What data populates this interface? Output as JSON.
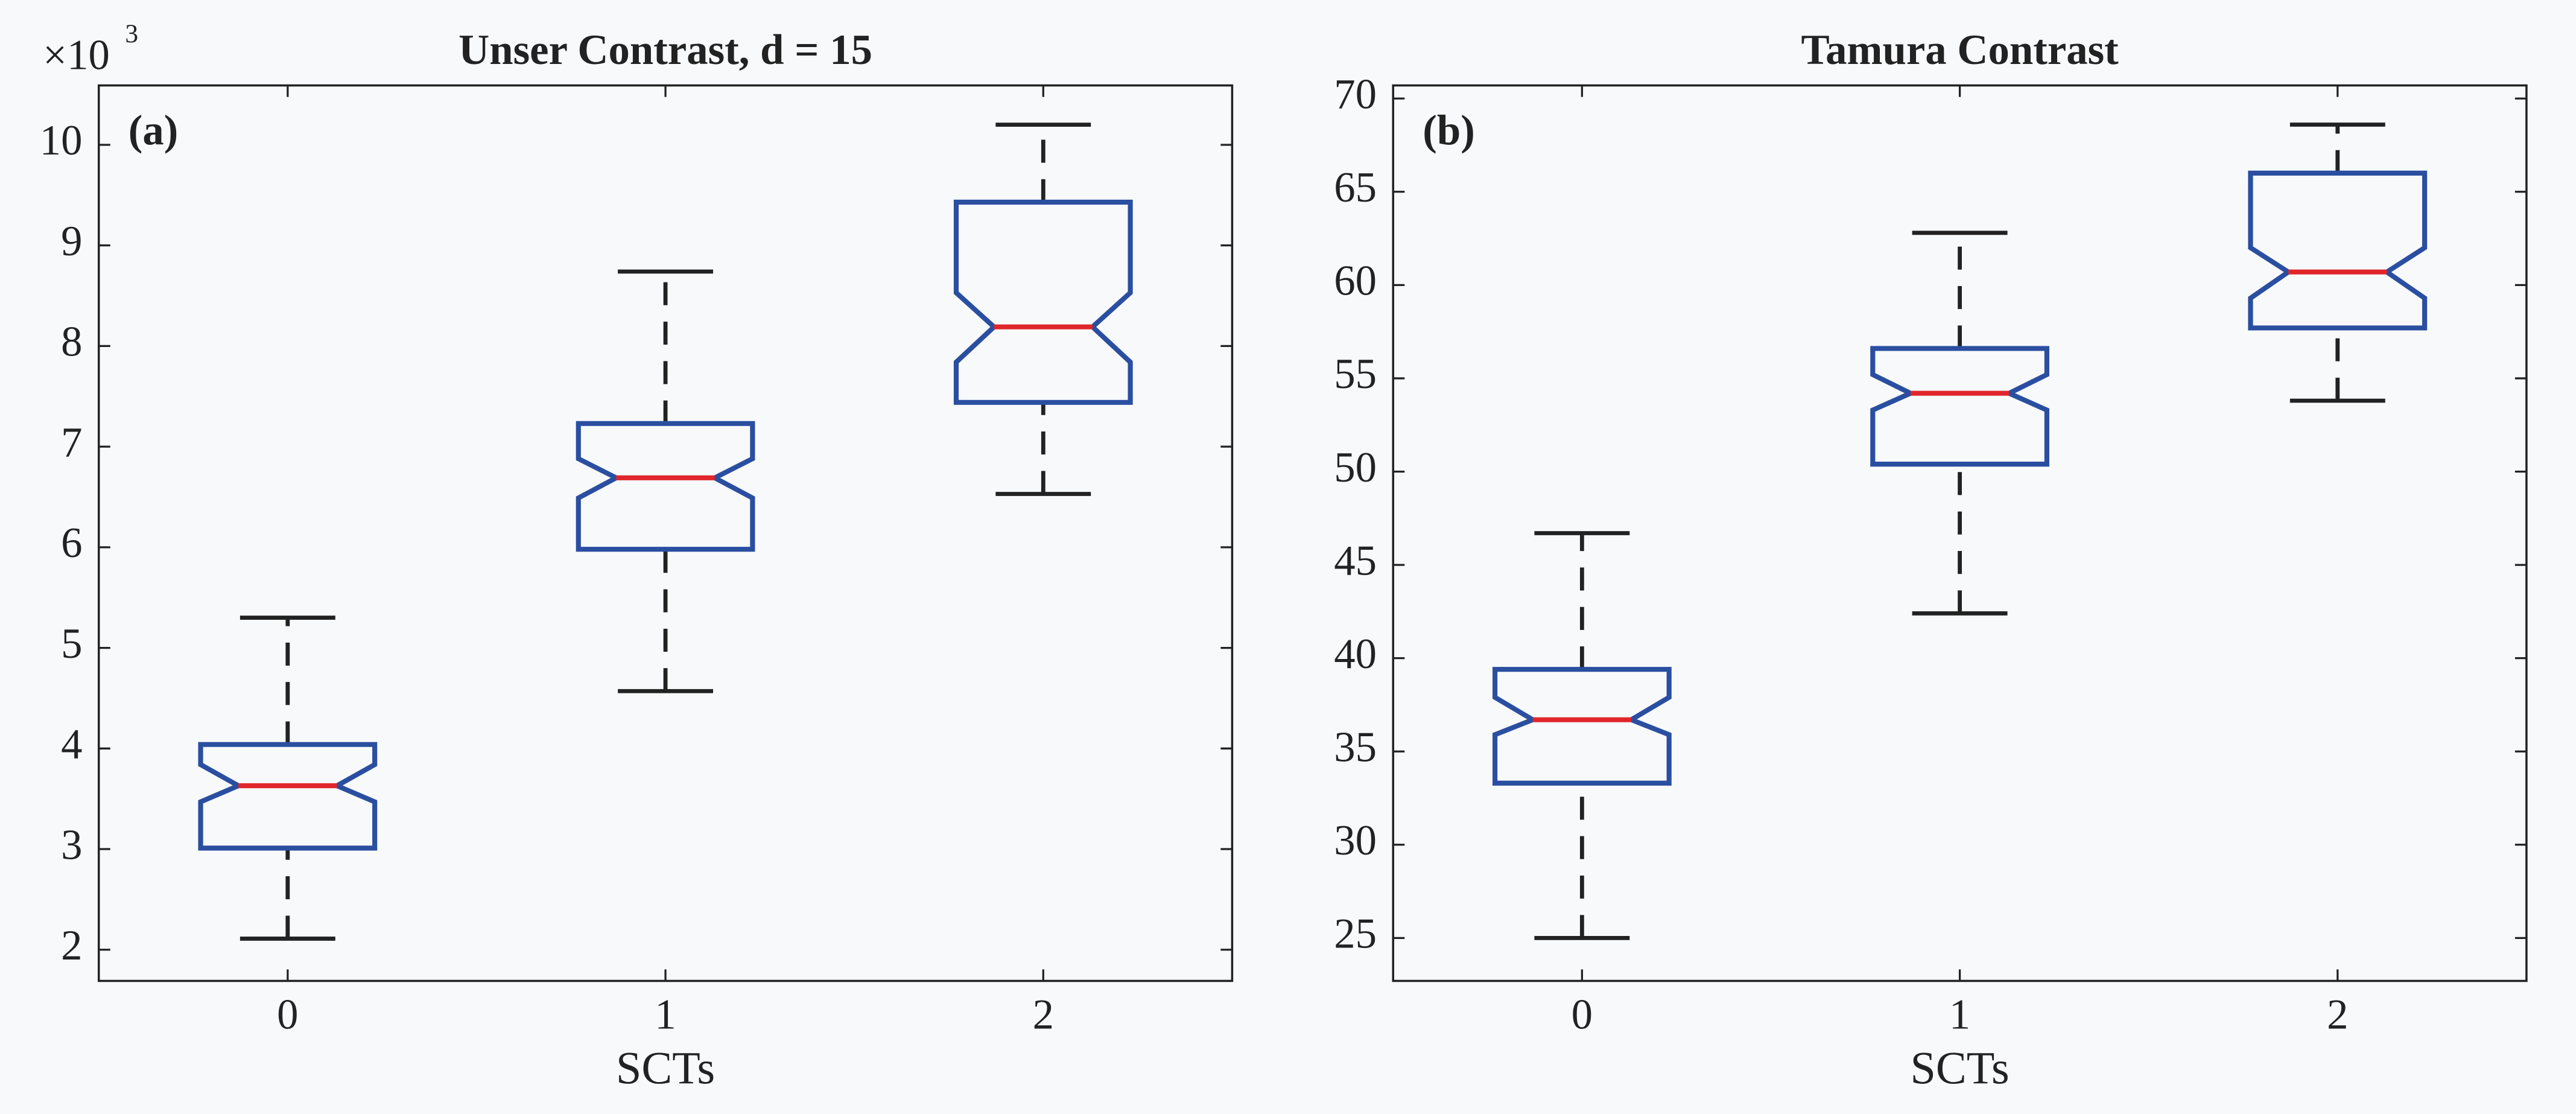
{
  "chart_data": [
    {
      "type": "box",
      "title": "Unser Contrast, d = 15",
      "panel_label": "(a)",
      "xlabel": "SCTs",
      "y_multiplier": {
        "base": "×10",
        "exponent": "3"
      },
      "categories": [
        "0",
        "1",
        "2"
      ],
      "boxes": [
        {
          "whisker_low": 2.11,
          "q1": 3.01,
          "notch_low": 3.47,
          "median": 3.63,
          "notch_high": 3.84,
          "q3": 4.04,
          "whisker_high": 5.3
        },
        {
          "whisker_low": 4.57,
          "q1": 5.98,
          "notch_low": 6.49,
          "median": 6.69,
          "notch_high": 6.88,
          "q3": 7.23,
          "whisker_high": 8.74
        },
        {
          "whisker_low": 6.53,
          "q1": 7.44,
          "notch_low": 7.84,
          "median": 8.19,
          "notch_high": 8.53,
          "q3": 9.43,
          "whisker_high": 10.2
        }
      ],
      "box_color": "#2a4ea0",
      "median_color": "#e0262b",
      "whisker_color": "#222222",
      "ylim": [
        1.69,
        10.59
      ],
      "yticks": [
        2,
        3,
        4,
        5,
        6,
        7,
        8,
        9,
        10
      ],
      "grid": false
    },
    {
      "type": "box",
      "title": "Tamura Contrast",
      "panel_label": "(b)",
      "xlabel": "SCTs",
      "categories": [
        "0",
        "1",
        "2"
      ],
      "boxes": [
        {
          "whisker_low": 25,
          "q1": 33.3,
          "notch_low": 35.9,
          "median": 36.7,
          "notch_high": 37.9,
          "q3": 39.4,
          "whisker_high": 46.7
        },
        {
          "whisker_low": 42.4,
          "q1": 50.4,
          "notch_low": 53.3,
          "median": 54.2,
          "notch_high": 55.2,
          "q3": 56.6,
          "whisker_high": 62.8
        },
        {
          "whisker_low": 53.8,
          "q1": 57.7,
          "notch_low": 59.3,
          "median": 60.7,
          "notch_high": 62.0,
          "q3": 66.0,
          "whisker_high": 68.6
        }
      ],
      "box_color": "#2a4ea0",
      "median_color": "#e0262b",
      "whisker_color": "#222222",
      "ylim": [
        22.7,
        70.7
      ],
      "yticks": [
        25,
        30,
        35,
        40,
        45,
        50,
        55,
        60,
        65,
        70
      ],
      "grid": false
    }
  ]
}
